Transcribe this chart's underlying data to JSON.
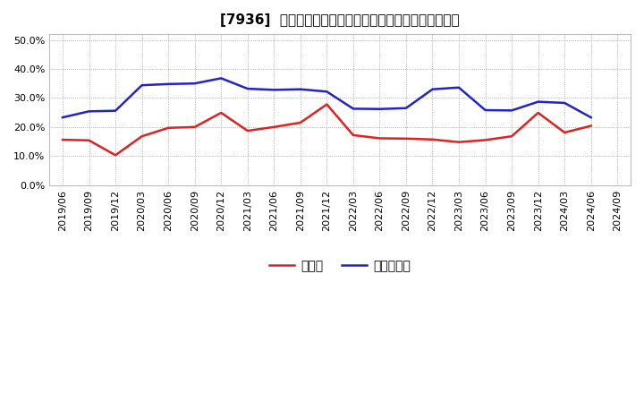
{
  "title": "[7936]  現須金、有利子負債の総資産に対する比率の推移",
  "x_labels": [
    "2019/06",
    "2019/09",
    "2019/12",
    "2020/03",
    "2020/06",
    "2020/09",
    "2020/12",
    "2021/03",
    "2021/06",
    "2021/09",
    "2021/12",
    "2022/03",
    "2022/06",
    "2022/09",
    "2022/12",
    "2023/03",
    "2023/06",
    "2023/09",
    "2023/12",
    "2024/03",
    "2024/06",
    "2024/09"
  ],
  "cash": [
    0.156,
    0.154,
    0.103,
    0.168,
    0.197,
    0.2,
    0.249,
    0.187,
    0.2,
    0.215,
    0.278,
    0.172,
    0.161,
    0.16,
    0.157,
    0.148,
    0.155,
    0.168,
    0.249,
    0.181,
    0.204,
    null
  ],
  "debt": [
    0.233,
    0.254,
    0.256,
    0.344,
    0.348,
    0.35,
    0.368,
    0.332,
    0.328,
    0.33,
    0.322,
    0.263,
    0.262,
    0.265,
    0.33,
    0.336,
    0.258,
    0.257,
    0.287,
    0.283,
    0.233,
    null
  ],
  "cash_color": "#dd2222",
  "debt_color": "#2222cc",
  "background_color": "#ffffff",
  "plot_bg_color": "#ffffff",
  "grid_color": "#999999",
  "ylim": [
    0.0,
    0.52
  ],
  "yticks": [
    0.0,
    0.1,
    0.2,
    0.3,
    0.4,
    0.5
  ],
  "legend_cash": "現須金",
  "legend_debt": "有利子負債",
  "title_fontsize": 11,
  "tick_fontsize": 8,
  "legend_fontsize": 10,
  "linewidth": 1.8
}
